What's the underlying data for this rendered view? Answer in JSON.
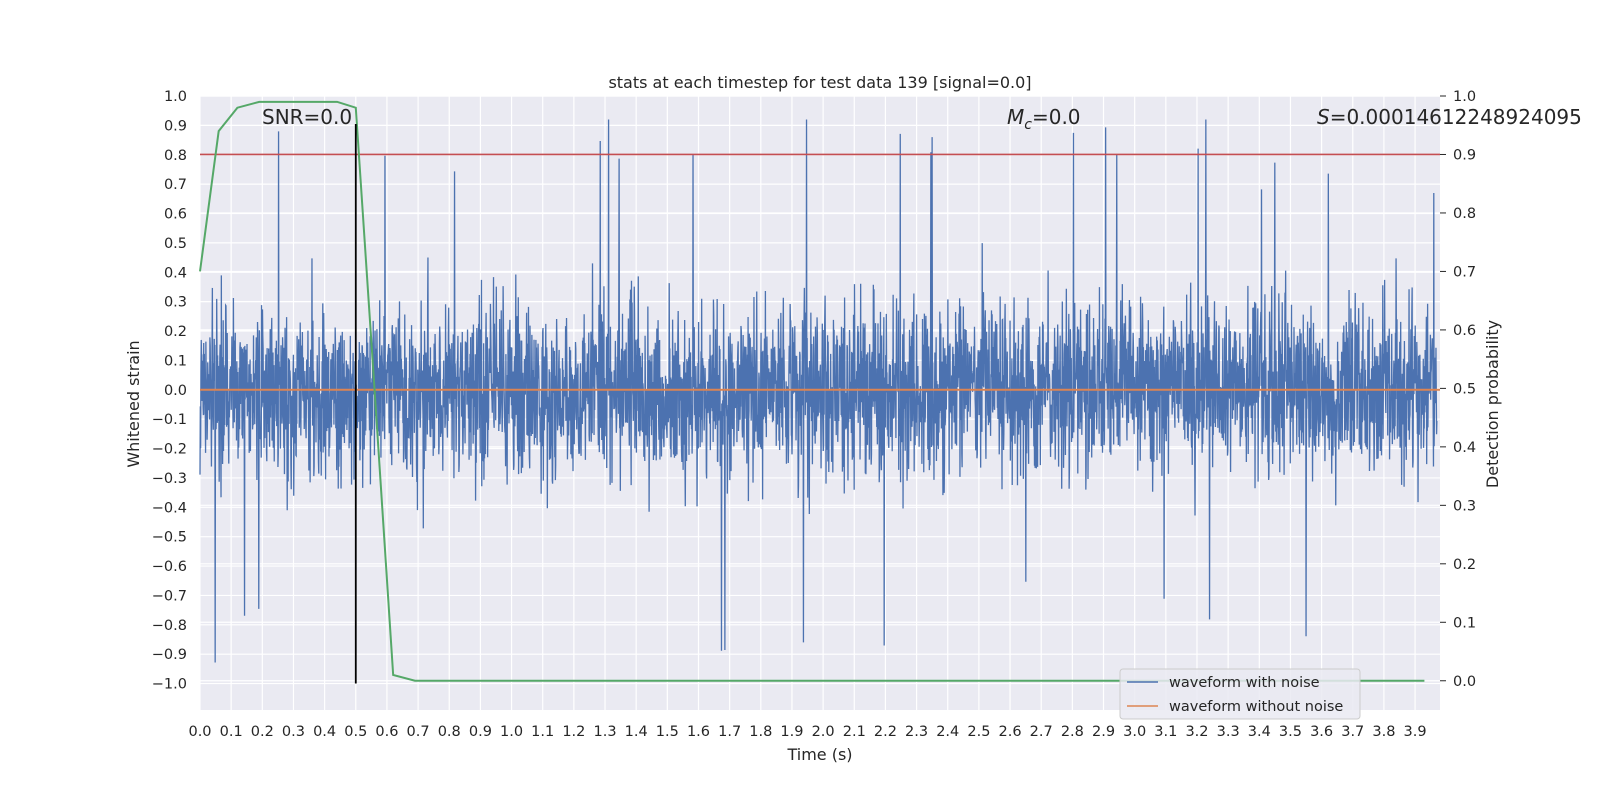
{
  "chart_data": {
    "type": "line",
    "title": "stats at each timestep for test data 139 [signal=0.0]",
    "xlabel": "Time (s)",
    "ylabel_left": "Whitened strain",
    "ylabel_right": "Detection probability",
    "xlim": [
      0.0,
      3.98
    ],
    "ylim_left": [
      -1.09,
      1.0
    ],
    "ylim_right": [
      -0.05,
      1.0
    ],
    "grid": true,
    "x_ticks": [
      "0.0",
      "0.1",
      "0.2",
      "0.3",
      "0.4",
      "0.5",
      "0.6",
      "0.7",
      "0.8",
      "0.9",
      "1.0",
      "1.1",
      "1.2",
      "1.3",
      "1.4",
      "1.5",
      "1.6",
      "1.7",
      "1.8",
      "1.9",
      "2.0",
      "2.1",
      "2.2",
      "2.3",
      "2.4",
      "2.5",
      "2.6",
      "2.7",
      "2.8",
      "2.9",
      "3.0",
      "3.1",
      "3.2",
      "3.3",
      "3.4",
      "3.5",
      "3.6",
      "3.7",
      "3.8",
      "3.9"
    ],
    "y_ticks_left": [
      "1.0",
      "0.9",
      "0.8",
      "0.7",
      "0.6",
      "0.5",
      "0.4",
      "0.3",
      "0.2",
      "0.1",
      "0.0",
      "−0.1",
      "−0.2",
      "−0.3",
      "−0.4",
      "−0.5",
      "−0.6",
      "−0.7",
      "−0.8",
      "−0.9",
      "−1.0"
    ],
    "y_ticks_right": [
      "1.0",
      "0.9",
      "0.8",
      "0.7",
      "0.6",
      "0.5",
      "0.4",
      "0.3",
      "0.2",
      "0.1",
      "0.0"
    ],
    "annotations": {
      "snr": "SNR=0.0",
      "mc_symbol": "M",
      "mc_sub": "c",
      "mc_value": "=0.0",
      "s_symbol": "S",
      "s_value": "=0.00014612248924095"
    },
    "threshold": 0.9,
    "marker_x": 0.5,
    "series": [
      {
        "name": "waveform with noise",
        "color": "#4c72b0",
        "axis": "left",
        "description": "dense noise trace, roughly within -0.5..0.5 with spikes to 0.9 and -1.0"
      },
      {
        "name": "waveform without noise",
        "color": "#dd8452",
        "axis": "left",
        "value": 0.0
      },
      {
        "name": "detection probability",
        "color": "#55a868",
        "axis": "right",
        "x": [
          0.0,
          0.06,
          0.12,
          0.19,
          0.25,
          0.31,
          0.37,
          0.44,
          0.5,
          0.56,
          0.62,
          0.69,
          0.75,
          1.0,
          2.0,
          3.0,
          3.93
        ],
        "values": [
          0.7,
          0.94,
          0.98,
          0.99,
          0.99,
          0.99,
          0.99,
          0.99,
          0.98,
          0.5,
          0.01,
          0.0,
          0.0,
          0.0,
          0.0,
          0.0,
          0.0
        ]
      }
    ],
    "legend_position": "lower right",
    "colors": {
      "background": "#eaeaf2",
      "grid": "#ffffff",
      "threshold": "#c44e52",
      "marker": "#000000"
    }
  }
}
